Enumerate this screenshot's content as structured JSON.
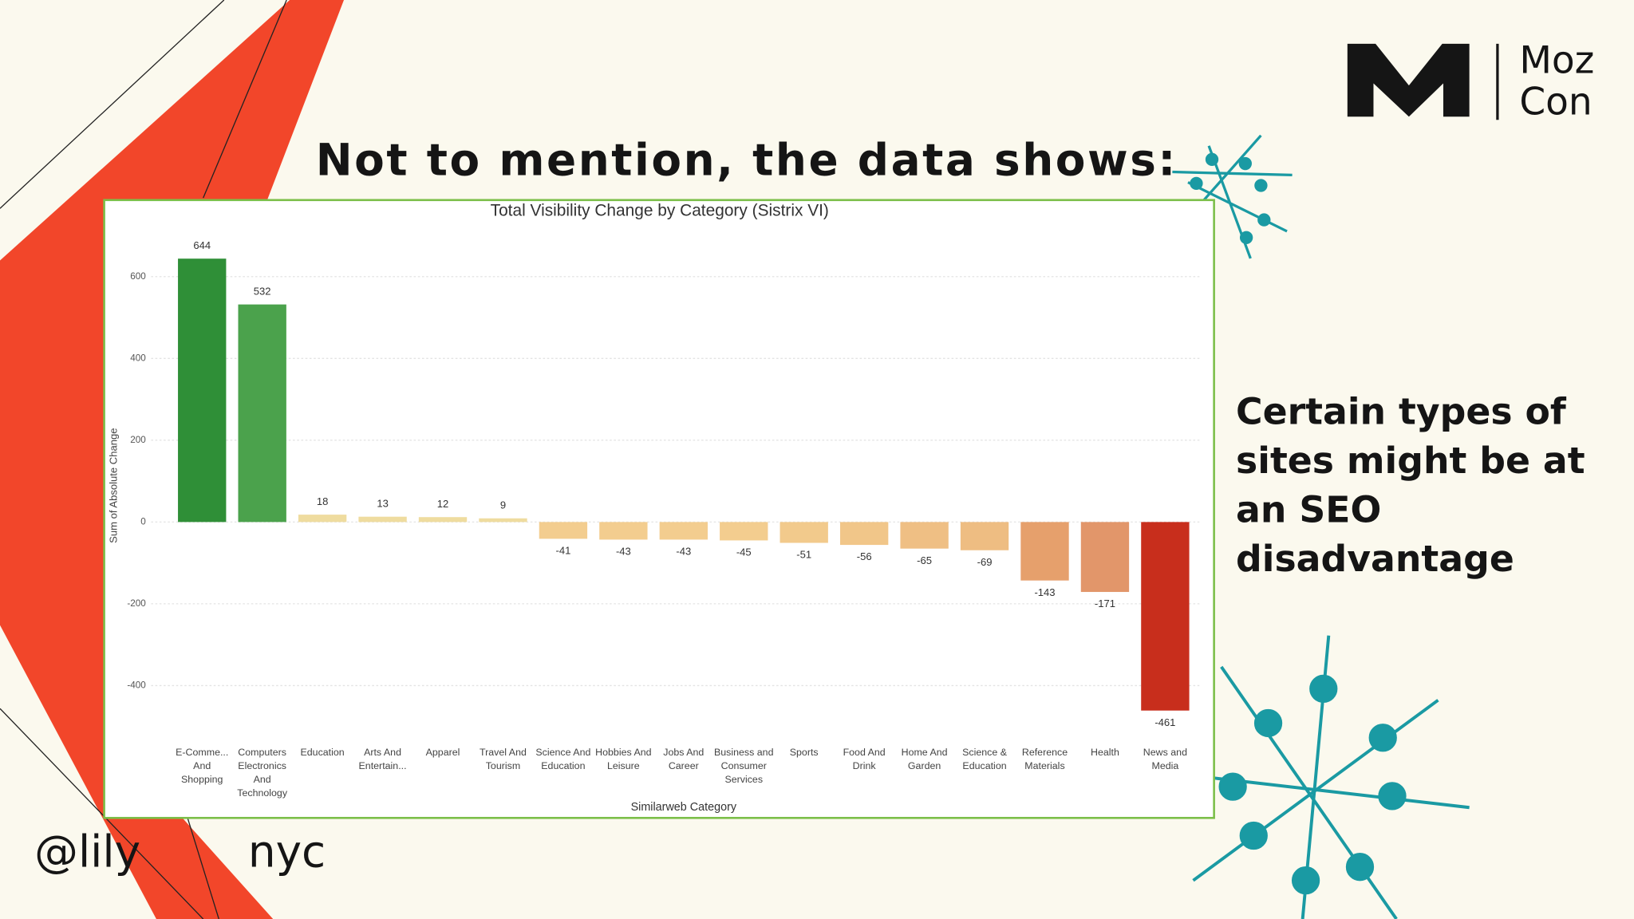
{
  "slide": {
    "heading": "Not to mention, the data shows:",
    "side_text": "Certain types of sites might be at an SEO disadvantage",
    "handle_start": "@lily",
    "handle_end": "nyc",
    "logo_top": "Moz",
    "logo_bottom": "Con"
  },
  "chart_data": {
    "type": "bar",
    "title": "Total Visibility Change by Category (Sistrix VI)",
    "y_label": "Sum of Absolute Change",
    "x_label": "Similarweb Category",
    "categories": [
      "E-Comme... And Shopping",
      "Computers Electronics And Technology",
      "Education",
      "Arts And Entertain...",
      "Apparel",
      "Travel And Tourism",
      "Science And Education",
      "Hobbies And Leisure",
      "Jobs And Career",
      "Business and Consumer Services",
      "Sports",
      "Food And Drink",
      "Home And Garden",
      "Science & Education",
      "Reference Materials",
      "Health",
      "News and Media"
    ],
    "values": [
      644,
      532,
      18,
      13,
      12,
      9,
      -41,
      -43,
      -43,
      -45,
      -51,
      -56,
      -65,
      -69,
      -143,
      -171,
      -461
    ],
    "colors": [
      "#2f8f37",
      "#4ba24c",
      "#efdc9f",
      "#efdc9f",
      "#efdc9f",
      "#efdc9f",
      "#f3cd8f",
      "#f3cd8f",
      "#f3cd8f",
      "#f3cd8f",
      "#f2ca8c",
      "#f1c689",
      "#efbf84",
      "#eebd82",
      "#e6a06c",
      "#e2966a",
      "#c82e1c"
    ],
    "ylim": [
      -500,
      700
    ],
    "yticks": [
      600,
      400,
      200,
      0,
      -200,
      -400
    ],
    "grid": true
  }
}
